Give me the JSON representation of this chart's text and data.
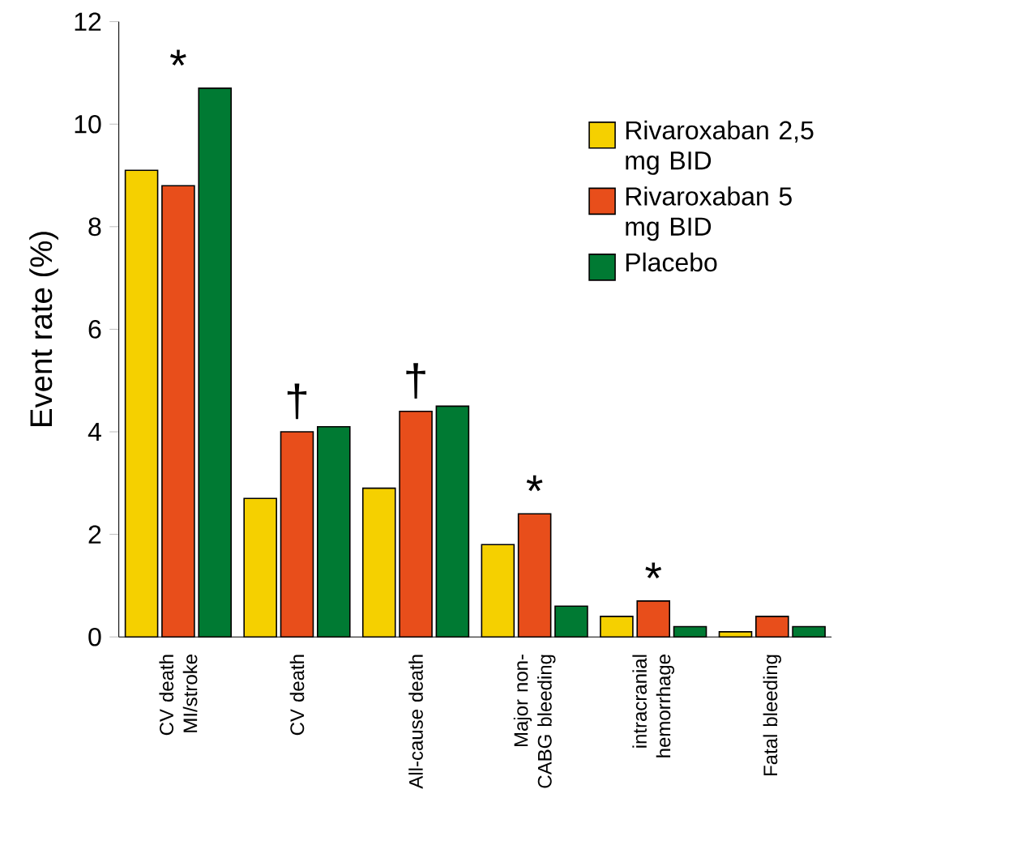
{
  "chart_data": {
    "type": "bar",
    "ylabel": "Event rate (%)",
    "categories": [
      "CV death MI/stroke",
      "CV death",
      "All-cause death",
      "Major non-CABG bleeding",
      "intracranial hemorrhage",
      "Fatal bleeding"
    ],
    "series": [
      {
        "name": "Rivaroxaban 2,5 mg BID",
        "color": "#f5d000",
        "values": [
          9.1,
          2.7,
          2.9,
          1.8,
          0.4,
          0.1
        ]
      },
      {
        "name": "Rivaroxaban 5 mg BID",
        "color": "#e84e1b",
        "values": [
          8.8,
          4.0,
          4.4,
          2.4,
          0.7,
          0.4
        ]
      },
      {
        "name": "Placebo",
        "color": "#007a33",
        "values": [
          10.7,
          4.1,
          4.5,
          0.6,
          0.2,
          0.2
        ]
      }
    ],
    "ylim": [
      0,
      12
    ],
    "yticks": [
      0,
      2,
      4,
      6,
      8,
      10,
      12
    ],
    "legend": "top right",
    "annotations": [
      "*",
      "†",
      "†",
      "*",
      "*"
    ]
  }
}
